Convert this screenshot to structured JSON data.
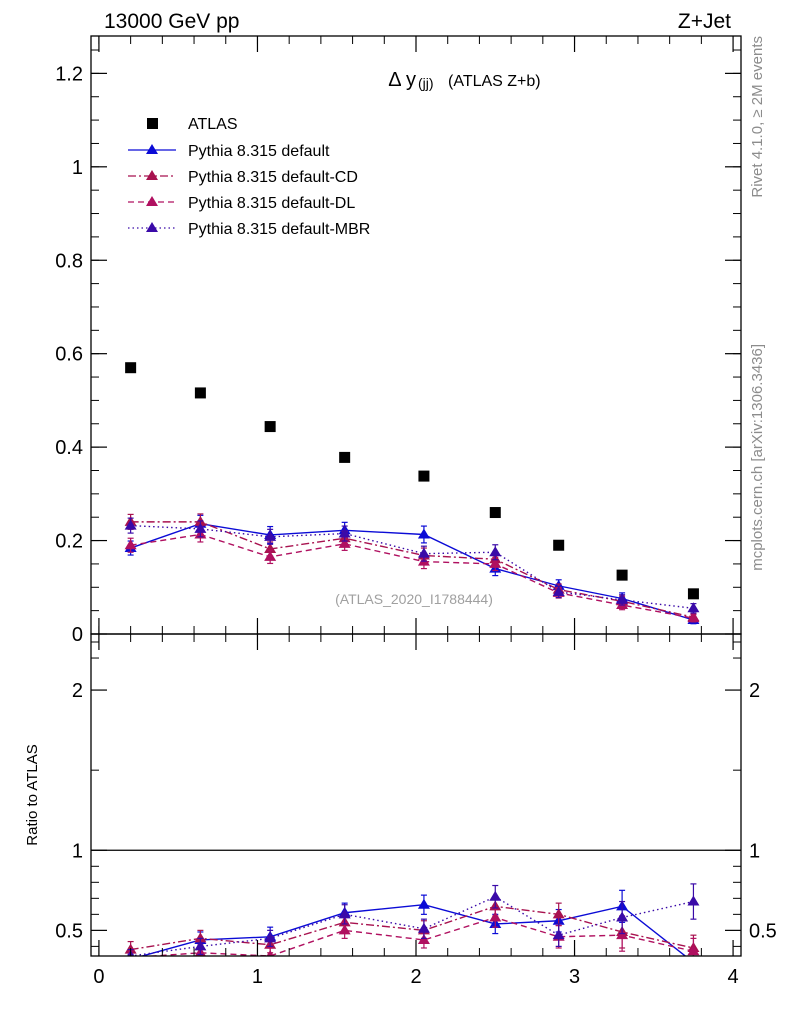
{
  "chart_data": {
    "type": "scatter",
    "header_left": "13000 GeV pp",
    "header_right": "Z+Jet",
    "title_main": "Δ y",
    "title_sub": "(jj)",
    "title_extra": "(ATLAS Z+b)",
    "watermark": "(ATLAS_2020_I1788444)",
    "side_label_top": "Rivet 4.1.0, ≥ 2M events",
    "side_label_bottom": "mcplots.cern.ch [arXiv:1306.3436]",
    "ratio_ylabel": "Ratio to ATLAS",
    "x": [
      0.2,
      0.64,
      1.08,
      1.55,
      2.05,
      2.5,
      2.9,
      3.3,
      3.75
    ],
    "main_xlim": [
      -0.05,
      4.05
    ],
    "main_ylim": [
      0,
      1.28
    ],
    "main_yticks": [
      0,
      0.2,
      0.4,
      0.6,
      0.8,
      1,
      1.2
    ],
    "main_ytick_labels": [
      "0",
      "0.2",
      "0.4",
      "0.6",
      "0.8",
      "1",
      "1.2"
    ],
    "ratio_ylim": [
      0.34,
      2.35
    ],
    "ratio_yticks": [
      0.5,
      1,
      2
    ],
    "ratio_ytick_labels": [
      "0.5",
      "1",
      "2"
    ],
    "xticks": [
      0,
      1,
      2,
      3,
      4
    ],
    "xtick_labels": [
      "0",
      "1",
      "2",
      "3",
      "4"
    ],
    "data": {
      "name": "ATLAS",
      "color": "#000000",
      "values": [
        0.57,
        0.516,
        0.444,
        0.378,
        0.338,
        0.26,
        0.19,
        0.126,
        0.086
      ]
    },
    "series": [
      {
        "name": "Pythia 8.315 default",
        "color": "#0b0bd6",
        "dash": "",
        "values": [
          0.184,
          0.236,
          0.212,
          0.222,
          0.213,
          0.14,
          0.103,
          0.076,
          0.03
        ],
        "errors": [
          0.015,
          0.018,
          0.018,
          0.017,
          0.018,
          0.015,
          0.013,
          0.012,
          0.008
        ],
        "ratio": [
          0.32,
          0.44,
          0.46,
          0.61,
          0.66,
          0.54,
          0.56,
          0.65,
          0.3
        ],
        "ratio_errors": [
          0.03,
          0.05,
          0.06,
          0.06,
          0.06,
          0.06,
          0.07,
          0.1,
          0.08
        ]
      },
      {
        "name": "Pythia 8.315 default-CD",
        "color": "#a8124f",
        "dash": "8,3,2,3",
        "values": [
          0.24,
          0.24,
          0.182,
          0.205,
          0.168,
          0.16,
          0.095,
          0.07,
          0.036
        ],
        "errors": [
          0.016,
          0.017,
          0.015,
          0.015,
          0.016,
          0.015,
          0.012,
          0.011,
          0.008
        ],
        "ratio": [
          0.38,
          0.45,
          0.41,
          0.55,
          0.5,
          0.65,
          0.6,
          0.49,
          0.39
        ],
        "ratio_errors": [
          0.05,
          0.05,
          0.05,
          0.05,
          0.06,
          0.06,
          0.07,
          0.1,
          0.08
        ]
      },
      {
        "name": "Pythia 8.315 default-DL",
        "color": "#b01060",
        "dash": "6,4",
        "values": [
          0.19,
          0.213,
          0.165,
          0.193,
          0.155,
          0.15,
          0.088,
          0.062,
          0.034
        ],
        "errors": [
          0.015,
          0.016,
          0.014,
          0.014,
          0.015,
          0.014,
          0.011,
          0.01,
          0.008
        ],
        "ratio": [
          0.33,
          0.36,
          0.34,
          0.5,
          0.44,
          0.58,
          0.46,
          0.47,
          0.37
        ],
        "ratio_errors": [
          0.04,
          0.05,
          0.05,
          0.05,
          0.05,
          0.06,
          0.07,
          0.1,
          0.08
        ]
      },
      {
        "name": "Pythia 8.315 default-MBR",
        "color": "#3a0aa8",
        "dash": "1.5,3",
        "values": [
          0.232,
          0.225,
          0.208,
          0.215,
          0.172,
          0.175,
          0.09,
          0.073,
          0.055
        ],
        "errors": [
          0.016,
          0.017,
          0.016,
          0.016,
          0.016,
          0.016,
          0.012,
          0.011,
          0.01
        ],
        "ratio": [
          0.34,
          0.4,
          0.45,
          0.6,
          0.51,
          0.71,
          0.47,
          0.58,
          0.68
        ],
        "ratio_errors": [
          0.04,
          0.05,
          0.05,
          0.06,
          0.06,
          0.07,
          0.07,
          0.1,
          0.11
        ]
      }
    ]
  }
}
